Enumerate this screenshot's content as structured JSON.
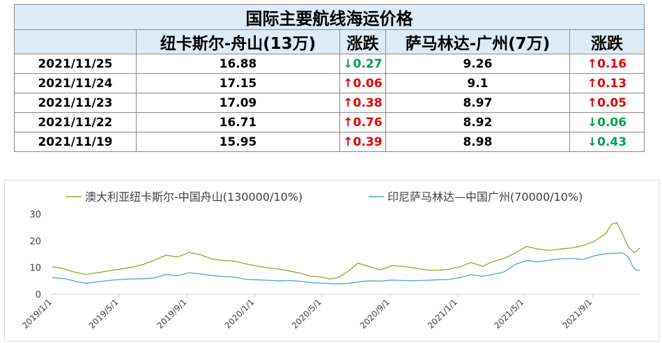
{
  "table": {
    "title": "国际主要航线海运价格",
    "headers": [
      "",
      "纽卡斯尔-舟山(13万)",
      "涨跌",
      "萨马林达-广州(7万)",
      "涨跌"
    ],
    "rows": [
      {
        "date": "2021/11/25",
        "r1": "16.88",
        "c1": "↓0.27",
        "c1dir": "down",
        "r2": "9.26",
        "c2": "↑0.16",
        "c2dir": "up"
      },
      {
        "date": "2021/11/24",
        "r1": "17.15",
        "c1": "↑0.06",
        "c1dir": "up",
        "r2": "9.1",
        "c2": "↑0.13",
        "c2dir": "up"
      },
      {
        "date": "2021/11/23",
        "r1": "17.09",
        "c1": "↑0.38",
        "c1dir": "up",
        "r2": "8.97",
        "c2": "↑0.05",
        "c2dir": "up"
      },
      {
        "date": "2021/11/22",
        "r1": "16.71",
        "c1": "↑0.76",
        "c1dir": "up",
        "r2": "8.92",
        "c2": "↓0.06",
        "c2dir": "down"
      },
      {
        "date": "2021/11/19",
        "r1": "15.95",
        "c1": "↑0.39",
        "c1dir": "up",
        "r2": "8.98",
        "c2": "↓0.43",
        "c2dir": "down"
      }
    ],
    "colors": {
      "up": "#e60000",
      "down": "#00a050",
      "header_bg": "#ddebf7"
    }
  },
  "chart_data": {
    "type": "line",
    "legend_position": "top",
    "grid": false,
    "ylim": [
      0,
      30
    ],
    "yticks": [
      0,
      10,
      20,
      30
    ],
    "xlim": [
      "2019-01-01",
      "2021-11-25"
    ],
    "xticks": [
      "2019/1/1",
      "2019/5/1",
      "2019/9/1",
      "2020/1/1",
      "2020/5/1",
      "2020/9/1",
      "2021/1/1",
      "2021/5/1",
      "2021/9/1"
    ],
    "series": [
      {
        "name": "澳大利亚纽卡斯尔-中国舟山(130000/10%)",
        "color": "#8faa2c",
        "points": [
          [
            "2019-01-01",
            10.3
          ],
          [
            "2019-01-20",
            9.6
          ],
          [
            "2019-02-10",
            8.3
          ],
          [
            "2019-03-01",
            7.4
          ],
          [
            "2019-03-20",
            7.9
          ],
          [
            "2019-04-10",
            8.6
          ],
          [
            "2019-05-01",
            9.3
          ],
          [
            "2019-05-25",
            10.1
          ],
          [
            "2019-06-15",
            11.2
          ],
          [
            "2019-07-05",
            12.8
          ],
          [
            "2019-07-25",
            14.6
          ],
          [
            "2019-08-15",
            13.9
          ],
          [
            "2019-09-05",
            15.6
          ],
          [
            "2019-09-25",
            14.8
          ],
          [
            "2019-10-15",
            13.2
          ],
          [
            "2019-11-05",
            12.6
          ],
          [
            "2019-11-25",
            12.4
          ],
          [
            "2019-12-15",
            11.4
          ],
          [
            "2020-01-01",
            10.7
          ],
          [
            "2020-01-20",
            10.0
          ],
          [
            "2020-02-10",
            9.5
          ],
          [
            "2020-03-01",
            8.8
          ],
          [
            "2020-03-20",
            8.0
          ],
          [
            "2020-04-10",
            6.8
          ],
          [
            "2020-05-01",
            6.4
          ],
          [
            "2020-05-15",
            5.7
          ],
          [
            "2020-06-01",
            6.3
          ],
          [
            "2020-06-20",
            9.0
          ],
          [
            "2020-07-05",
            11.6
          ],
          [
            "2020-07-25",
            10.4
          ],
          [
            "2020-08-15",
            9.1
          ],
          [
            "2020-09-05",
            10.7
          ],
          [
            "2020-09-25",
            10.4
          ],
          [
            "2020-10-15",
            9.8
          ],
          [
            "2020-11-05",
            9.1
          ],
          [
            "2020-11-25",
            8.9
          ],
          [
            "2020-12-15",
            9.3
          ],
          [
            "2021-01-05",
            10.2
          ],
          [
            "2021-01-25",
            11.9
          ],
          [
            "2021-02-15",
            10.4
          ],
          [
            "2021-03-05",
            12.2
          ],
          [
            "2021-03-25",
            13.3
          ],
          [
            "2021-04-15",
            15.5
          ],
          [
            "2021-05-05",
            17.9
          ],
          [
            "2021-05-25",
            16.9
          ],
          [
            "2021-06-15",
            16.4
          ],
          [
            "2021-07-05",
            16.9
          ],
          [
            "2021-07-25",
            17.3
          ],
          [
            "2021-08-15",
            18.2
          ],
          [
            "2021-09-05",
            19.9
          ],
          [
            "2021-09-25",
            22.7
          ],
          [
            "2021-10-05",
            26.2
          ],
          [
            "2021-10-15",
            26.8
          ],
          [
            "2021-10-25",
            22.5
          ],
          [
            "2021-11-05",
            17.5
          ],
          [
            "2021-11-15",
            15.6
          ],
          [
            "2021-11-19",
            15.95
          ],
          [
            "2021-11-22",
            16.71
          ],
          [
            "2021-11-23",
            17.09
          ],
          [
            "2021-11-24",
            17.15
          ],
          [
            "2021-11-25",
            16.88
          ]
        ]
      },
      {
        "name": "印尼萨马林达—中国广州(70000/10%)",
        "color": "#4aa6d6",
        "points": [
          [
            "2019-01-01",
            6.2
          ],
          [
            "2019-01-25",
            5.8
          ],
          [
            "2019-02-15",
            4.6
          ],
          [
            "2019-03-05",
            4.1
          ],
          [
            "2019-03-25",
            4.7
          ],
          [
            "2019-04-15",
            5.2
          ],
          [
            "2019-05-05",
            5.5
          ],
          [
            "2019-05-25",
            5.7
          ],
          [
            "2019-06-15",
            5.8
          ],
          [
            "2019-07-05",
            6.1
          ],
          [
            "2019-07-25",
            7.4
          ],
          [
            "2019-08-15",
            6.9
          ],
          [
            "2019-09-05",
            8.0
          ],
          [
            "2019-09-25",
            7.6
          ],
          [
            "2019-10-15",
            7.0
          ],
          [
            "2019-11-05",
            6.6
          ],
          [
            "2019-11-25",
            6.4
          ],
          [
            "2019-12-15",
            5.6
          ],
          [
            "2020-01-05",
            5.4
          ],
          [
            "2020-01-25",
            5.2
          ],
          [
            "2020-02-15",
            5.0
          ],
          [
            "2020-03-05",
            5.1
          ],
          [
            "2020-03-25",
            4.8
          ],
          [
            "2020-04-15",
            4.3
          ],
          [
            "2020-05-05",
            4.1
          ],
          [
            "2020-05-25",
            3.8
          ],
          [
            "2020-06-15",
            4.0
          ],
          [
            "2020-07-05",
            4.6
          ],
          [
            "2020-07-25",
            5.0
          ],
          [
            "2020-08-15",
            4.9
          ],
          [
            "2020-09-05",
            5.3
          ],
          [
            "2020-09-25",
            5.1
          ],
          [
            "2020-10-15",
            5.0
          ],
          [
            "2020-11-05",
            5.2
          ],
          [
            "2020-11-25",
            5.4
          ],
          [
            "2020-12-15",
            5.5
          ],
          [
            "2021-01-05",
            6.2
          ],
          [
            "2021-01-25",
            7.3
          ],
          [
            "2021-02-15",
            6.7
          ],
          [
            "2021-03-05",
            7.4
          ],
          [
            "2021-03-25",
            8.3
          ],
          [
            "2021-04-15",
            11.2
          ],
          [
            "2021-05-05",
            12.6
          ],
          [
            "2021-05-25",
            12.1
          ],
          [
            "2021-06-15",
            12.7
          ],
          [
            "2021-07-05",
            13.2
          ],
          [
            "2021-07-25",
            13.4
          ],
          [
            "2021-08-15",
            13.0
          ],
          [
            "2021-09-05",
            14.4
          ],
          [
            "2021-09-25",
            15.2
          ],
          [
            "2021-10-10",
            15.3
          ],
          [
            "2021-10-25",
            15.5
          ],
          [
            "2021-11-05",
            13.8
          ],
          [
            "2021-11-12",
            10.5
          ],
          [
            "2021-11-19",
            8.98
          ],
          [
            "2021-11-22",
            8.92
          ],
          [
            "2021-11-23",
            8.97
          ],
          [
            "2021-11-24",
            9.1
          ],
          [
            "2021-11-25",
            9.26
          ]
        ]
      }
    ]
  }
}
